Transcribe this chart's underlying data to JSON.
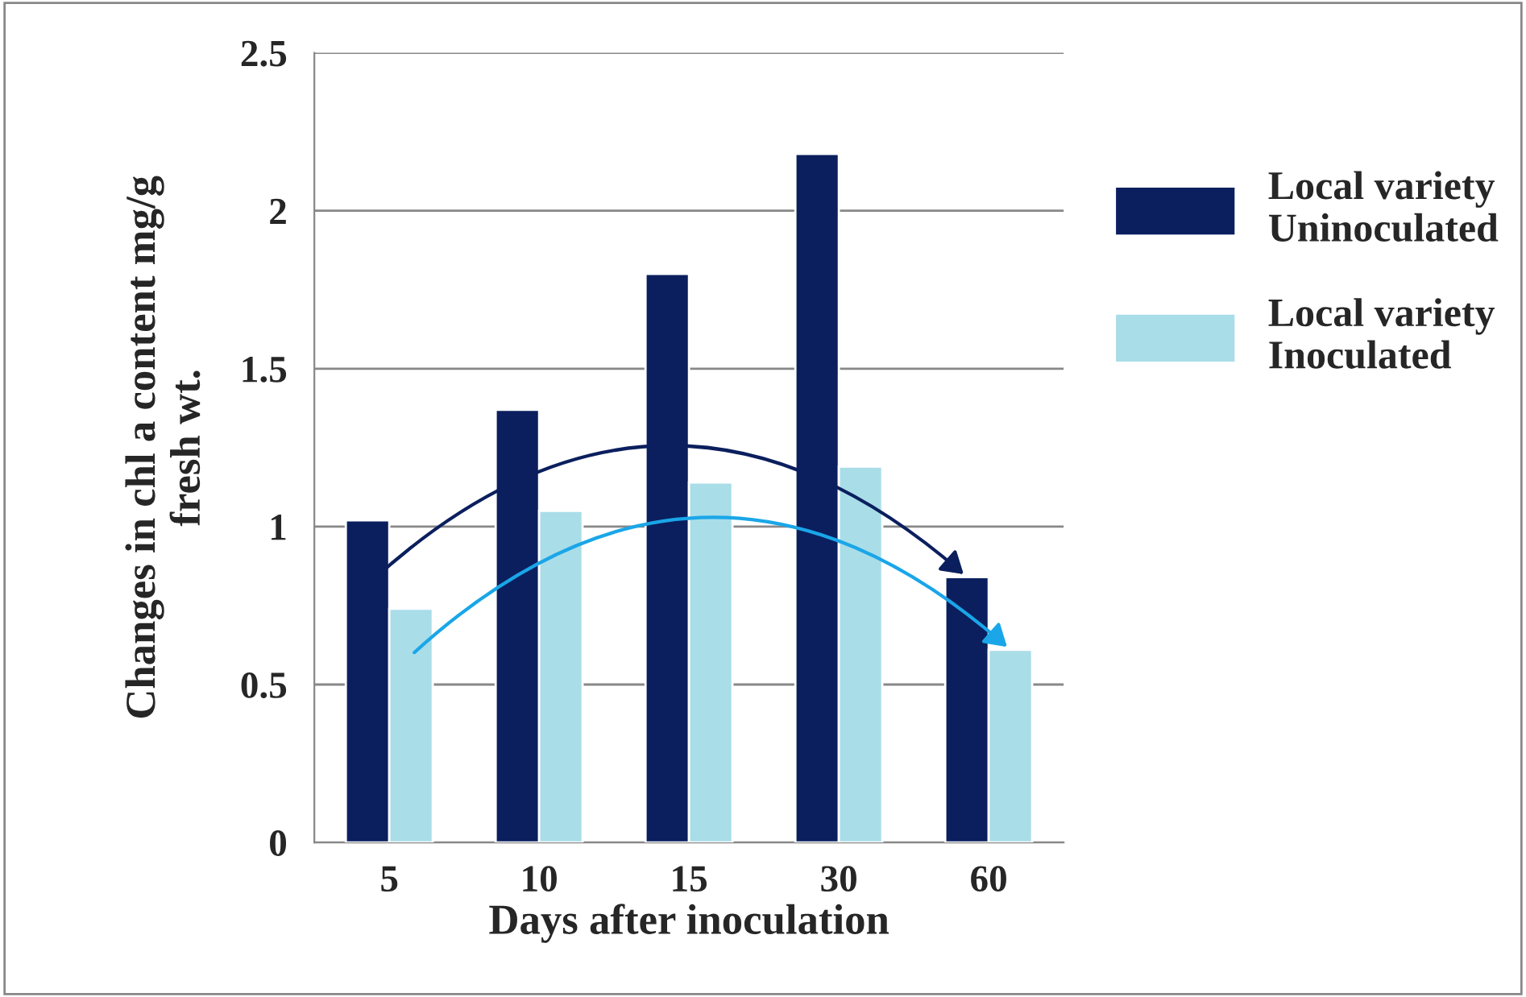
{
  "chart_data": {
    "type": "bar",
    "xlabel": "Days after inoculation",
    "ylabel": "Changes in chl a content mg/g\nfresh wt.",
    "categories": [
      "5",
      "10",
      "15",
      "30",
      "60"
    ],
    "series": [
      {
        "name": "Local variety\nUninoculated",
        "color": "#0b1f5e",
        "values": [
          1.02,
          1.37,
          1.8,
          2.18,
          0.84
        ]
      },
      {
        "name": "Local variety\nInoculated",
        "color": "#a9dde8",
        "values": [
          0.74,
          1.05,
          1.14,
          1.19,
          0.61
        ]
      }
    ],
    "ylim": [
      0,
      2.5
    ],
    "yticks": [
      0,
      0.5,
      1,
      1.5,
      2,
      2.5
    ],
    "grid": "y",
    "legend": "right"
  }
}
